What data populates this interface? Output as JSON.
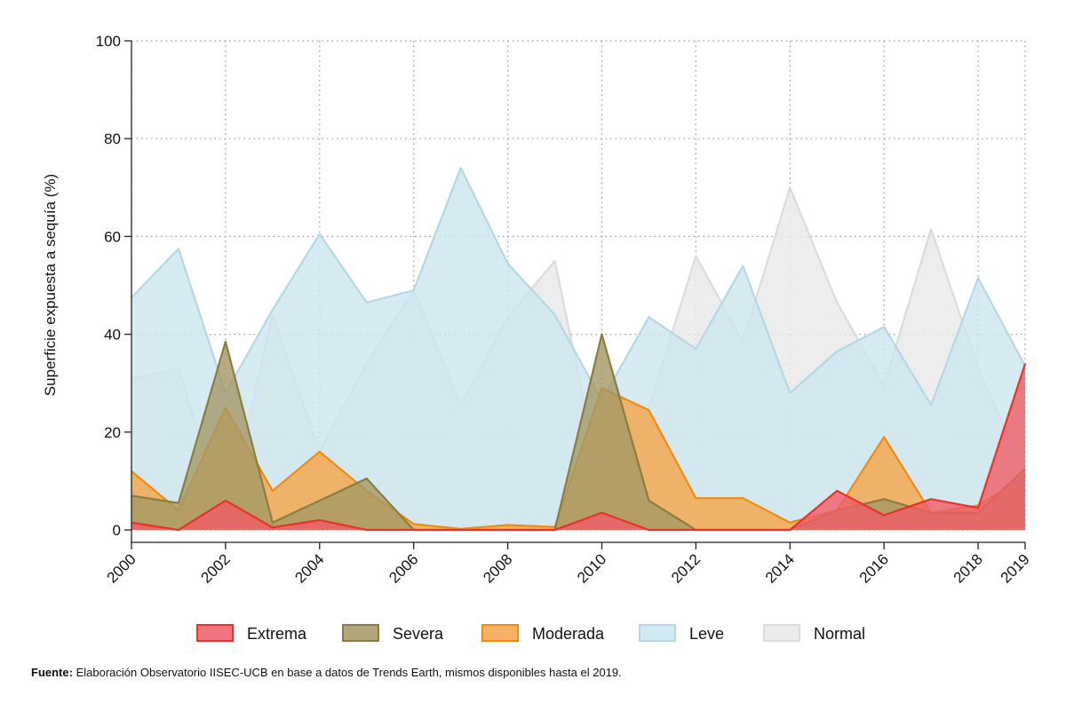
{
  "chart_data": {
    "type": "area",
    "ylabel": "Superficie expuesta a sequía (%)",
    "xlabel": "",
    "ylim": [
      0,
      100
    ],
    "yticks": [
      0,
      20,
      40,
      60,
      80,
      100
    ],
    "xlim": [
      2000,
      2019
    ],
    "xticks": [
      2000,
      2002,
      2004,
      2006,
      2008,
      2010,
      2012,
      2014,
      2016,
      2018,
      2019
    ],
    "grid": true,
    "legend_position": "bottom",
    "x": [
      2000,
      2001,
      2002,
      2003,
      2004,
      2005,
      2006,
      2007,
      2008,
      2009,
      2010,
      2011,
      2012,
      2013,
      2014,
      2015,
      2016,
      2017,
      2018,
      2019
    ],
    "series": [
      {
        "name": "Normal",
        "fill": "#e8e8e8",
        "stroke": "#dcdcdc",
        "values": [
          31,
          33,
          2,
          44,
          16,
          34,
          49,
          25.5,
          43.5,
          55,
          9,
          25,
          56,
          38.5,
          70,
          46.5,
          29.5,
          61.5,
          33,
          11.5
        ]
      },
      {
        "name": "Leve",
        "fill": "#cde6ef",
        "stroke": "#b3d8e7",
        "values": [
          47.5,
          57.5,
          28,
          45,
          60.5,
          46.5,
          49,
          74,
          54.5,
          44,
          26.5,
          43.5,
          37,
          54,
          28,
          36.5,
          41.5,
          25.5,
          51.5,
          33.5
        ]
      },
      {
        "name": "Moderada",
        "fill": "#f5a447",
        "stroke": "#f08a10",
        "values": [
          12,
          4,
          25,
          8,
          16,
          8,
          1.2,
          0.2,
          1,
          0.6,
          29,
          24.5,
          6.5,
          6.5,
          1.5,
          4,
          19,
          3.5,
          5,
          11
        ]
      },
      {
        "name": "Severa",
        "fill": "#a49865",
        "stroke": "#8a7d3f",
        "values": [
          7,
          5.5,
          38.5,
          1.5,
          6,
          10.5,
          0,
          0,
          0,
          0,
          40,
          6,
          0,
          0,
          0,
          4,
          6.3,
          3.5,
          3.5,
          12.5
        ]
      },
      {
        "name": "Extrema",
        "fill": "#ef5c68",
        "stroke": "#e8332b",
        "values": [
          1.5,
          0,
          6,
          0.5,
          2,
          0,
          0,
          0,
          0,
          0,
          3.5,
          0,
          0,
          0,
          0,
          8,
          3,
          6.3,
          4.5,
          34
        ]
      }
    ],
    "legend": [
      "Extrema",
      "Severa",
      "Moderada",
      "Leve",
      "Normal"
    ]
  },
  "source": {
    "prefix": "Fuente:",
    "text": " Elaboración Observatorio IISEC-UCB en base a datos de Trends Earth, mismos disponibles hasta el 2019."
  }
}
